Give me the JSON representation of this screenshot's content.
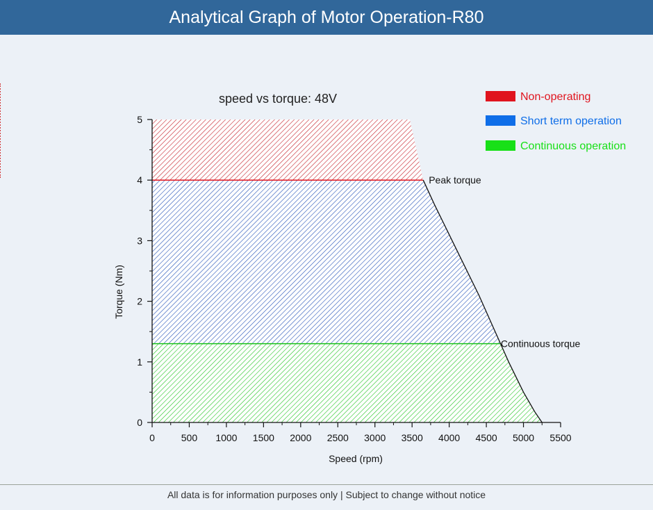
{
  "header": {
    "title": "Analytical Graph of Motor Operation-R80"
  },
  "footer": {
    "disclaimer": "All data is for information purposes only | Subject to change without notice"
  },
  "colors": {
    "header_bg": "#31679a",
    "non_operating": "#e0141e",
    "short_term": "#0f6ee8",
    "continuous": "#18e018"
  },
  "chart_data": {
    "type": "area",
    "title": "speed vs torque: 48V",
    "xlabel": "Speed (rpm)",
    "ylabel": "Torque (Nm)",
    "xlim": [
      0,
      5500
    ],
    "ylim": [
      0,
      5
    ],
    "x_ticks": [
      "0",
      "500",
      "1000",
      "1500",
      "2000",
      "2500",
      "3000",
      "3500",
      "4000",
      "4500",
      "5000",
      "5500"
    ],
    "y_ticks": [
      "0",
      "1",
      "2",
      "3",
      "4",
      "5"
    ],
    "legend": [
      {
        "label": "Non-operating",
        "color": "#e0141e"
      },
      {
        "label": "Short term operation",
        "color": "#0f6ee8"
      },
      {
        "label": "Continuous operation",
        "color": "#18e018"
      }
    ],
    "legend_position": "top-right",
    "peak_torque": 4.0,
    "continuous_torque": 1.3,
    "curve": {
      "x": [
        3650,
        3800,
        4000,
        4200,
        4400,
        4600,
        4800,
        5000,
        5150,
        5250
      ],
      "y": [
        4.0,
        3.6,
        3.1,
        2.6,
        2.1,
        1.55,
        1.0,
        0.5,
        0.18,
        0.0
      ]
    },
    "non_operating_top_edge": {
      "x": [
        0,
        3470
      ],
      "y": [
        5,
        5
      ]
    },
    "annotations": [
      {
        "text": "Peak torque",
        "x": 3650,
        "y": 4.0
      },
      {
        "text": "Continuous torque",
        "x": 4620,
        "y": 1.3
      }
    ]
  }
}
